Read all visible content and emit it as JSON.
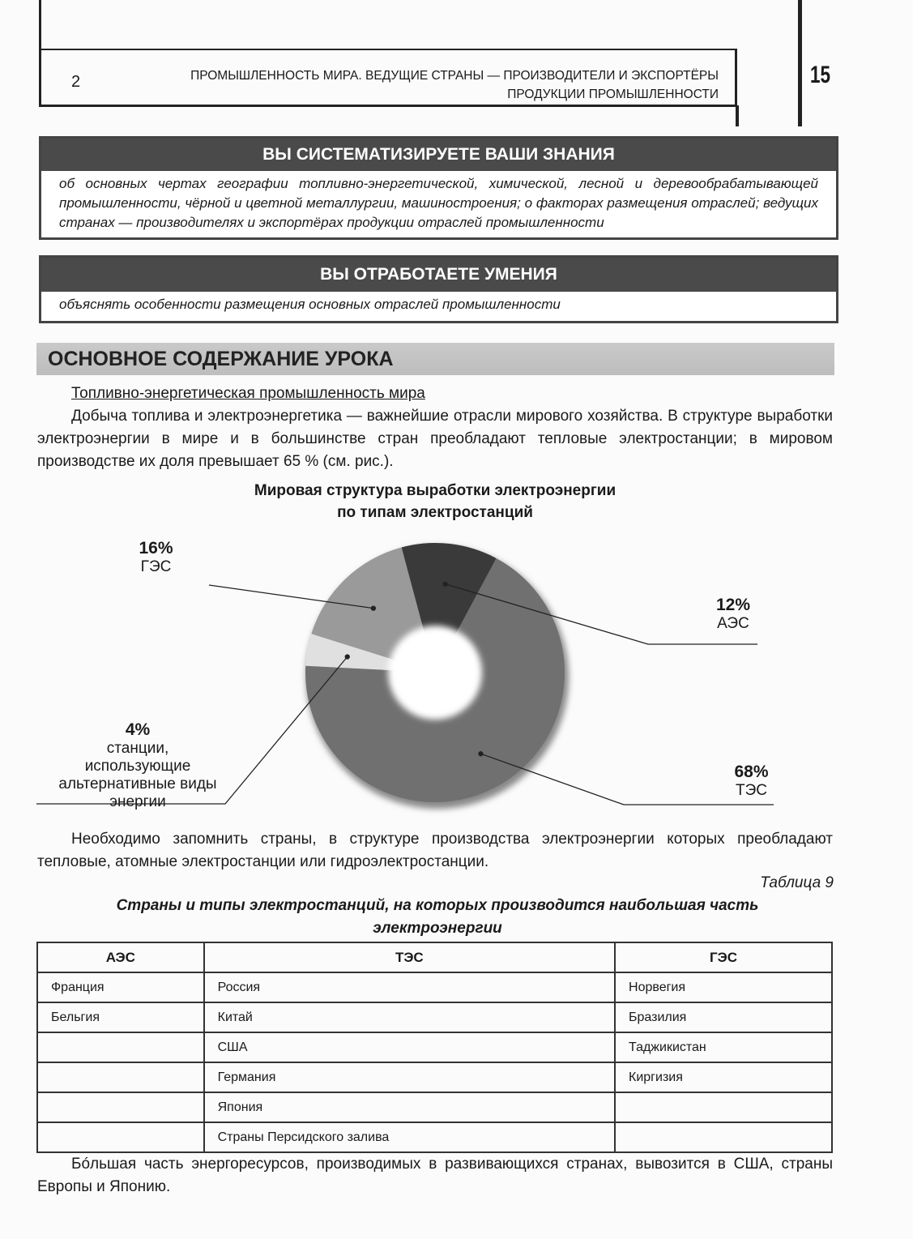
{
  "header": {
    "chapter_number": "2",
    "title_line1": "ПРОМЫШЛЕННОСТЬ МИРА. ВЕДУЩИЕ СТРАНЫ — ПРОИЗВОДИТЕЛИ И ЭКСПОРТЁРЫ",
    "title_line2": "ПРОДУКЦИИ ПРОМЫШЛЕННОСТИ",
    "page_number": "15"
  },
  "knowledge": {
    "title": "ВЫ СИСТЕМАТИЗИРУЕТЕ ВАШИ ЗНАНИЯ",
    "text": "об основных чертах географии топливно-энергетической, химической, лесной и деревообрабатывающей промышленности, чёрной и цветной металлургии, машиностроения; о факторах размещения отраслей; ведущих странах — производителях и экспортёрах продукции отраслей промышленности"
  },
  "skills": {
    "title": "ВЫ ОТРАБОТАЕТЕ УМЕНИЯ",
    "text": "объяснять особенности размещения основных отраслей промышленности"
  },
  "main": {
    "banner": "ОСНОВНОЕ СОДЕРЖАНИЕ УРОКА",
    "subheading": "Топливно-энергетическая промышленность мира",
    "paragraph1": "Добыча топлива и электроэнергетика — важнейшие отрасли мирового хозяйства. В структуре выработки электроэнергии в мире и в большинстве стран преобладают тепловые электростанции; в мировом производстве их доля превышает 65 % (см. рис.).",
    "paragraph2": "Необходимо запомнить страны, в структуре производства электроэнергии которых преобладают тепловые, атомные электростанции или гидроэлектростанции.",
    "paragraph3": "Бóльшая часть энергоресурсов, производимых в развивающихся странах, вывозится в США, страны Европы и Японию."
  },
  "chart_data": {
    "type": "pie",
    "donut": true,
    "title_line1": "Мировая структура выработки электроэнергии",
    "title_line2": "по типам электростанций",
    "slices": [
      {
        "label": "АЭС",
        "value": 12,
        "value_label": "12%",
        "color": "#3a3a3a"
      },
      {
        "label": "ТЭС",
        "value": 68,
        "value_label": "68%",
        "color": "#707070"
      },
      {
        "label": "станции, использующие альтернативные виды энергии",
        "value": 4,
        "value_label": "4%",
        "color": "#e0e0e0"
      },
      {
        "label": "ГЭС",
        "value": 16,
        "value_label": "16%",
        "color": "#9a9a9a"
      }
    ]
  },
  "table": {
    "caption_number": "Таблица 9",
    "title": "Страны и типы электростанций, на которых производится наибольшая часть электроэнергии",
    "columns": [
      "АЭС",
      "ТЭС",
      "ГЭС"
    ],
    "rows": [
      [
        "Франция",
        "Россия",
        "Норвегия"
      ],
      [
        "Бельгия",
        "Китай",
        "Бразилия"
      ],
      [
        "",
        "США",
        "Таджикистан"
      ],
      [
        "",
        "Германия",
        "Киргизия"
      ],
      [
        "",
        "Япония",
        ""
      ],
      [
        "",
        "Страны Персидского залива",
        ""
      ]
    ]
  }
}
